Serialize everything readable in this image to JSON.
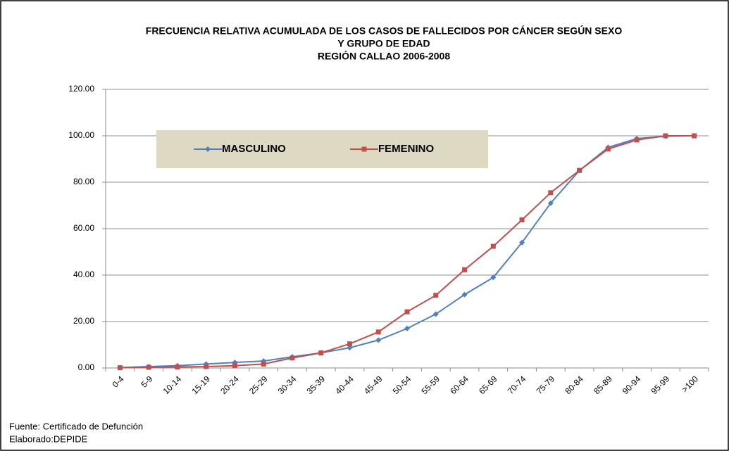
{
  "chart_data": {
    "type": "line",
    "title": [
      "FRECUENCIA RELATIVA ACUMULADA DE LOS CASOS DE FALLECIDOS POR CÁNCER   SEGÚN SEXO",
      "Y GRUPO DE EDAD",
      "REGIÓN CALLAO 2006-2008"
    ],
    "categories": [
      "0-4",
      "5-9",
      "10-14",
      "15-19",
      "20-24",
      "25-29",
      "30-34",
      "35-39",
      "40-44",
      "45-49",
      "50-54",
      "55-59",
      "60-64",
      "65-69",
      "70-74",
      "75-79",
      "80-84",
      "85-89",
      "90-94",
      "95-99",
      ">100"
    ],
    "series": [
      {
        "name": "MASCULINO",
        "color": "#4f81bd",
        "marker": "diamond",
        "values": [
          0.2,
          0.6,
          1.0,
          1.7,
          2.4,
          3.0,
          4.8,
          6.5,
          8.7,
          12.0,
          17.0,
          23.2,
          31.6,
          39.0,
          54.0,
          71.0,
          85.0,
          95.0,
          98.8,
          99.8,
          100
        ]
      },
      {
        "name": "FEMENINO",
        "color": "#c0504d",
        "marker": "square",
        "values": [
          0.1,
          0.3,
          0.4,
          0.6,
          1.0,
          1.7,
          4.3,
          6.5,
          10.4,
          15.5,
          24.2,
          31.3,
          42.3,
          52.4,
          63.8,
          75.5,
          85.1,
          94.3,
          98.2,
          100,
          100
        ]
      }
    ],
    "ylim": [
      0,
      120
    ],
    "yticks": [
      {
        "value": 0,
        "label": "0.00"
      },
      {
        "value": 20,
        "label": "20.00"
      },
      {
        "value": 40,
        "label": "40.00"
      },
      {
        "value": 60,
        "label": "60.00"
      },
      {
        "value": 80,
        "label": "80.00"
      },
      {
        "value": 100,
        "label": "100.00"
      },
      {
        "value": 120,
        "label": "120.00"
      }
    ],
    "grid": true,
    "legend": "top-left",
    "source": [
      "Fuente: Certificado de Defunción",
      "Elaborado:DEPIDE"
    ]
  }
}
